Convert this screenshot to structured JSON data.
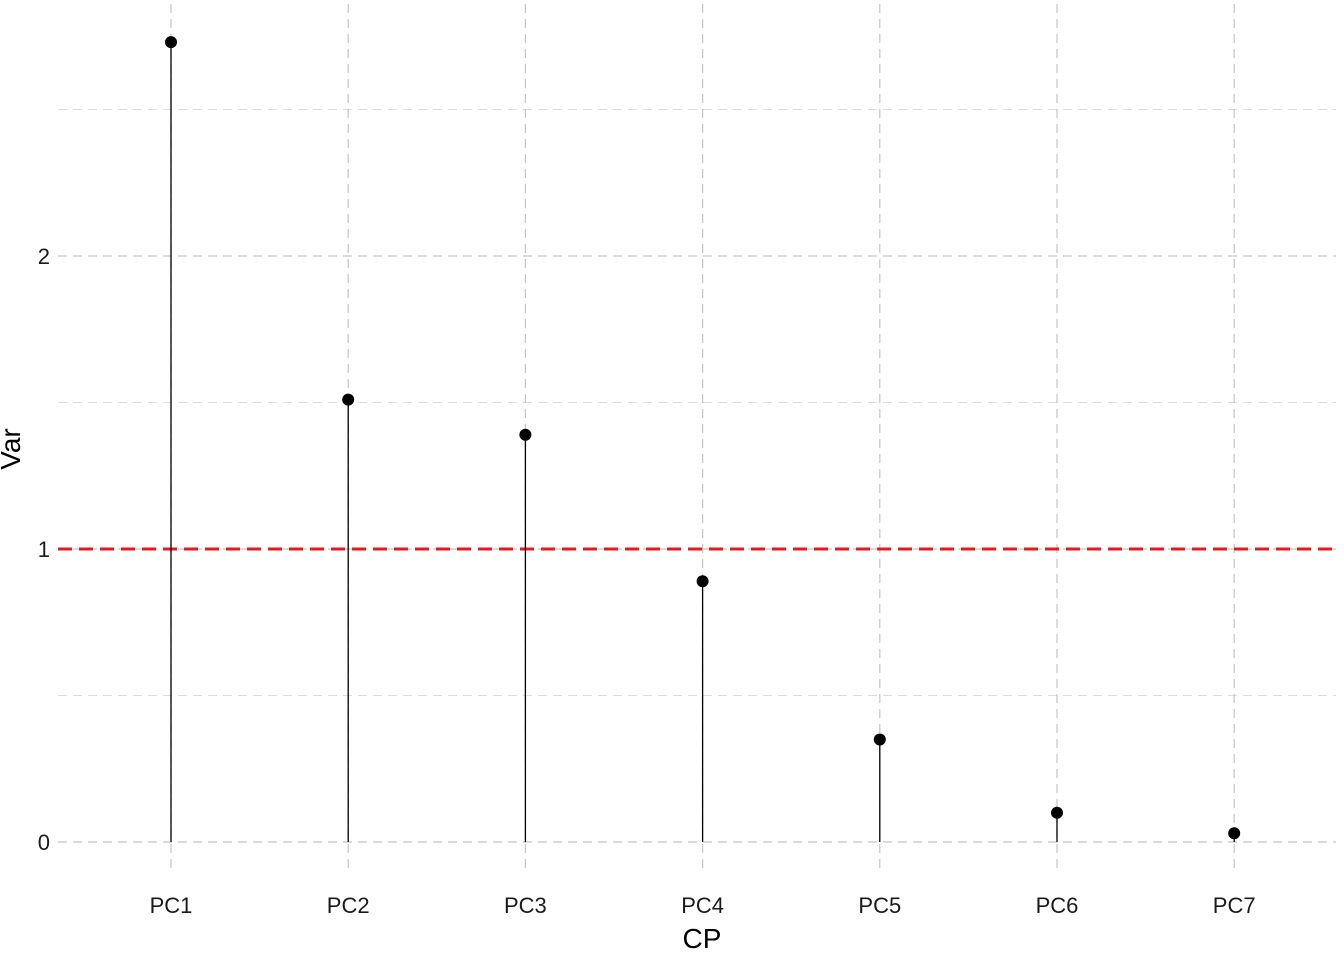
{
  "chart_data": {
    "type": "scatter",
    "style": "lollipop",
    "title": "",
    "xlabel": "CP",
    "ylabel": "Var",
    "categories": [
      "PC1",
      "PC2",
      "PC3",
      "PC4",
      "PC5",
      "PC6",
      "PC7"
    ],
    "values": [
      2.73,
      1.51,
      1.39,
      0.89,
      0.35,
      0.1,
      0.03
    ],
    "ylim": [
      -0.1,
      2.8
    ],
    "y_ticks": [
      0,
      1,
      2
    ],
    "y_tick_labels": [
      "0",
      "1",
      "2"
    ],
    "y_minor_ticks": [
      0.5,
      1.5,
      2.5
    ],
    "reference_line": {
      "y": 1,
      "color": "#e8191c",
      "style": "dashed"
    },
    "grid": true,
    "legend": "none",
    "colors": {
      "stem": "#000000",
      "point": "#000000",
      "grid": "#c4c4c4"
    }
  }
}
